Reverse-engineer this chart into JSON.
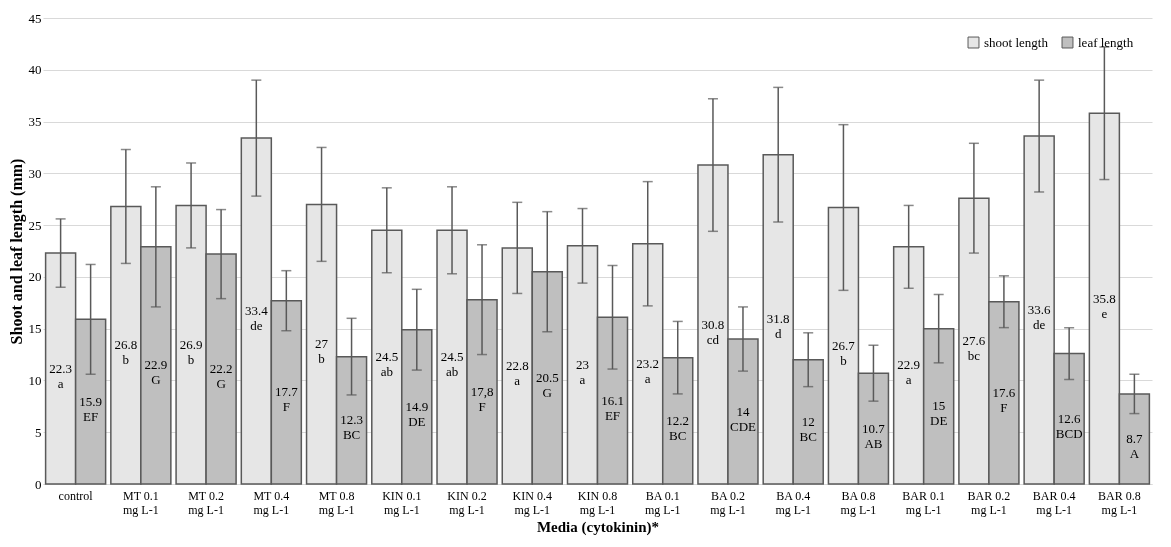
{
  "chart_data": {
    "type": "bar",
    "xlabel": "Media (cytokinin)*",
    "ylabel": "Shoot and leaf length (mm)",
    "categories": [
      "control",
      "MT 0.1\nmg L-1",
      "MT 0.2\nmg L-1",
      "MT 0.4\nmg L-1",
      "MT 0.8\nmg L-1",
      "KIN 0.1\nmg L-1",
      "KIN 0.2\nmg L-1",
      "KIN 0.4\nmg L-1",
      "KIN 0.8\nmg L-1",
      "BA 0.1\nmg L-1",
      "BA 0.2\nmg L-1",
      "BA 0.4\nmg L-1",
      "BA 0.8\nmg L-1",
      "BAR 0.1\nmg L-1",
      "BAR 0.2\nmg L-1",
      "BAR 0.4\nmg L-1",
      "BAR 0.8\nmg L-1"
    ],
    "series": [
      {
        "name": "shoot length",
        "color": "#e6e6e6",
        "values": [
          22.3,
          26.8,
          26.9,
          33.4,
          27,
          24.5,
          24.5,
          22.8,
          23,
          23.2,
          30.8,
          31.8,
          26.7,
          22.9,
          27.6,
          33.6,
          35.8
        ],
        "errors": [
          3.3,
          5.5,
          4.1,
          5.6,
          5.5,
          4.1,
          4.2,
          4.4,
          3.6,
          6.0,
          6.4,
          6.5,
          8.0,
          4.0,
          5.3,
          5.4,
          6.4
        ],
        "value_labels": [
          "22.3\na",
          "26.8\nb",
          "26.9\nb",
          "33.4\nde",
          "27\nb",
          "24.5\nab",
          "24.5\nab",
          "22.8\na",
          "23\na",
          "23.2\na",
          "30.8\ncd",
          "31.8\nd",
          "26.7\nb",
          "22.9\na",
          "27.6\nbc",
          "33.6\nde",
          "35.8\ne"
        ]
      },
      {
        "name": "leaf length",
        "color": "#bfbfbf",
        "values": [
          15.9,
          22.9,
          22.2,
          17.7,
          12.3,
          14.9,
          17.8,
          20.5,
          16.1,
          12.2,
          14,
          12,
          10.7,
          15,
          17.6,
          12.6,
          8.7
        ],
        "errors": [
          5.3,
          5.8,
          4.3,
          2.9,
          3.7,
          3.9,
          5.3,
          5.8,
          5.0,
          3.5,
          3.1,
          2.6,
          2.7,
          3.3,
          2.5,
          2.5,
          1.9
        ],
        "value_labels": [
          "15.9\nEF",
          "22.9\nG",
          "22.2\nG",
          "17.7\nF",
          "12.3\nBC",
          "14.9\nDE",
          "17,8\nF",
          "20.5\nG",
          "16.1\nEF",
          "12.2\nBC",
          "14\nCDE",
          "12\nBC",
          "10.7\nAB",
          "15\nDE",
          "17.6\nF",
          "12.6\nBCD",
          "8.7\nA"
        ]
      }
    ],
    "ylim": [
      0,
      45
    ],
    "yticks": [
      0,
      5,
      10,
      15,
      20,
      25,
      30,
      35,
      40,
      45
    ],
    "grid": "y",
    "legend": "top right"
  }
}
